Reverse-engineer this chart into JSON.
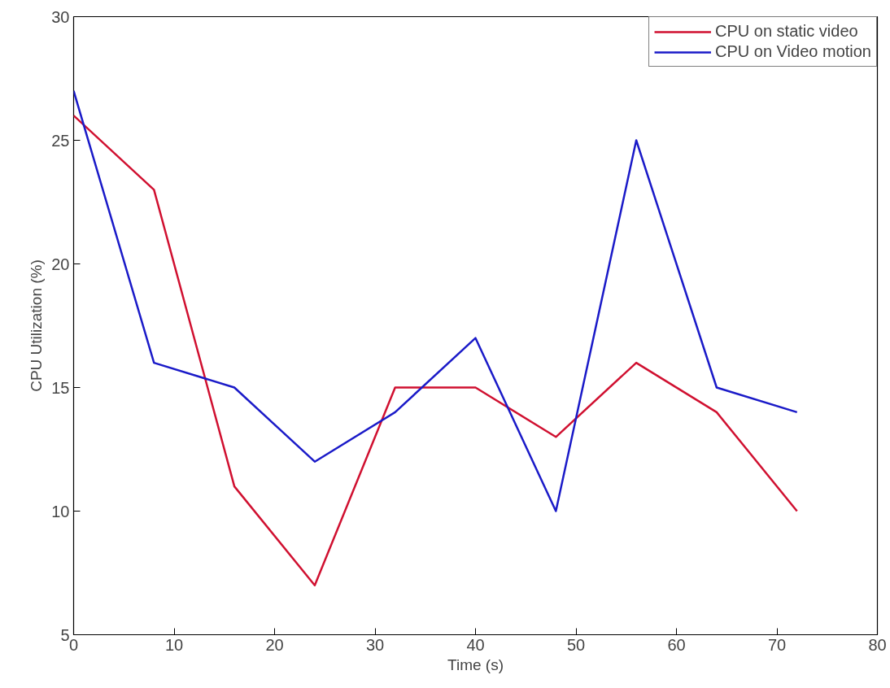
{
  "chart_data": {
    "type": "line",
    "xlabel": "Time (s)",
    "ylabel": "CPU Utilization (%)",
    "x": [
      0,
      8,
      16,
      24,
      32,
      40,
      48,
      56,
      64,
      72
    ],
    "series": [
      {
        "name": "CPU on static video",
        "color": "#d01030",
        "values": [
          26,
          23,
          11,
          7,
          15,
          15,
          13,
          16,
          14,
          10
        ]
      },
      {
        "name": "CPU on Video motion",
        "color": "#1a1ac8",
        "values": [
          27,
          16,
          15,
          12,
          14,
          17,
          10,
          25,
          15,
          14
        ]
      }
    ],
    "xlim": [
      0,
      80
    ],
    "xticks": [
      0,
      10,
      20,
      30,
      40,
      50,
      60,
      70,
      80
    ],
    "ylim": [
      5,
      30
    ],
    "yticks": [
      5,
      10,
      15,
      20,
      25,
      30
    ],
    "grid": false,
    "legend": "top right",
    "marker": "none",
    "line_style": "solid"
  }
}
